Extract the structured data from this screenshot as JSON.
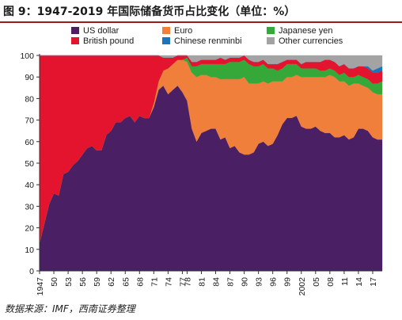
{
  "title": "图 9：1947-2019 年国际储备货币占比变化（单位：%）",
  "source": "数据来源：IMF，西南证券整理",
  "chart_data": {
    "type": "area",
    "stacked": true,
    "grid": false,
    "legend_position": "top",
    "ylim": [
      0,
      100
    ],
    "yticks": [
      0,
      10,
      20,
      30,
      40,
      50,
      60,
      70,
      80,
      90,
      100
    ],
    "xlim": [
      1947,
      2019
    ],
    "xticks": [
      {
        "year": 1947,
        "label": "1947"
      },
      {
        "year": 1950,
        "label": "50"
      },
      {
        "year": 1953,
        "label": "53"
      },
      {
        "year": 1956,
        "label": "56"
      },
      {
        "year": 1959,
        "label": "59"
      },
      {
        "year": 1962,
        "label": "62"
      },
      {
        "year": 1965,
        "label": "65"
      },
      {
        "year": 1968,
        "label": "68"
      },
      {
        "year": 1971,
        "label": "71"
      },
      {
        "year": 1974,
        "label": "74"
      },
      {
        "year": 1977,
        "label": "77"
      },
      {
        "year": 1978,
        "label": "78"
      },
      {
        "year": 1981,
        "label": "81"
      },
      {
        "year": 1984,
        "label": "84"
      },
      {
        "year": 1987,
        "label": "87"
      },
      {
        "year": 1990,
        "label": "90"
      },
      {
        "year": 1993,
        "label": "93"
      },
      {
        "year": 1996,
        "label": "96"
      },
      {
        "year": 1999,
        "label": "99"
      },
      {
        "year": 2002,
        "label": "2002"
      },
      {
        "year": 2005,
        "label": "05"
      },
      {
        "year": 2008,
        "label": "08"
      },
      {
        "year": 2011,
        "label": "11"
      },
      {
        "year": 2014,
        "label": "14"
      },
      {
        "year": 2017,
        "label": "17"
      }
    ],
    "x": [
      1947,
      1949,
      1950,
      1951,
      1952,
      1953,
      1954,
      1955,
      1956,
      1957,
      1958,
      1959,
      1960,
      1961,
      1962,
      1963,
      1964,
      1965,
      1966,
      1967,
      1968,
      1969,
      1970,
      1971,
      1972,
      1973,
      1974,
      1975,
      1976,
      1977,
      1978,
      1979,
      1980,
      1981,
      1982,
      1983,
      1984,
      1985,
      1986,
      1987,
      1988,
      1989,
      1990,
      1991,
      1992,
      1993,
      1994,
      1995,
      1996,
      1997,
      1998,
      1999,
      2000,
      2001,
      2002,
      2003,
      2004,
      2005,
      2006,
      2007,
      2008,
      2009,
      2010,
      2011,
      2012,
      2013,
      2014,
      2015,
      2016,
      2017,
      2018,
      2019
    ],
    "series": [
      {
        "name": "US dollar",
        "color": "#4b1f63",
        "values": [
          13,
          31,
          36,
          35,
          45,
          46,
          49,
          51,
          54,
          57,
          58,
          56,
          56,
          63,
          65,
          69,
          69,
          71,
          72,
          69,
          72,
          71,
          71,
          76,
          84,
          86,
          82,
          84,
          86,
          83,
          79,
          66,
          60,
          64,
          65,
          66,
          66,
          61,
          62,
          57,
          58,
          55,
          54,
          54,
          55,
          59,
          60,
          58,
          59,
          63,
          68,
          71,
          71,
          72,
          67,
          66,
          66,
          67,
          65,
          64,
          64,
          62,
          62,
          63,
          61,
          62,
          66,
          66,
          65,
          62,
          61,
          61
        ]
      },
      {
        "name": "Euro",
        "color": "#f07f3c",
        "values": [
          0,
          0,
          0,
          0,
          0,
          0,
          0,
          0,
          0,
          0,
          0,
          0,
          0,
          0,
          0,
          0,
          0,
          0,
          0,
          0,
          0,
          0,
          0,
          2,
          4,
          7,
          12,
          12,
          12,
          15,
          18,
          26,
          30,
          27,
          26,
          24,
          24,
          28,
          27,
          32,
          31,
          34,
          36,
          33,
          32,
          28,
          28,
          29,
          29,
          25,
          20,
          19,
          19,
          19,
          23,
          24,
          24,
          23,
          25,
          26,
          27,
          28,
          26,
          25,
          25,
          25,
          21,
          20,
          20,
          21,
          21,
          21
        ]
      },
      {
        "name": "Japanese yen",
        "color": "#36a83a",
        "values": [
          0,
          0,
          0,
          0,
          0,
          0,
          0,
          0,
          0,
          0,
          0,
          0,
          0,
          0,
          0,
          0,
          0,
          0,
          0,
          0,
          0,
          0,
          0,
          0,
          0,
          0,
          0,
          0,
          0,
          0,
          2,
          3,
          5,
          5,
          5,
          6,
          6,
          7,
          7,
          8,
          8,
          8,
          8,
          9,
          8,
          8,
          8,
          7,
          6,
          5,
          6,
          6,
          6,
          5,
          4,
          4,
          4,
          4,
          3,
          3,
          3,
          3,
          3,
          4,
          4,
          3,
          4,
          4,
          4,
          4,
          5,
          6
        ]
      },
      {
        "name": "British pound",
        "color": "#e4142f",
        "values": [
          87,
          69,
          64,
          65,
          55,
          54,
          51,
          49,
          46,
          43,
          42,
          44,
          44,
          37,
          35,
          31,
          31,
          29,
          28,
          31,
          28,
          29,
          29,
          22,
          12,
          6,
          5,
          3,
          2,
          2,
          1,
          2,
          2,
          2,
          2,
          2,
          2,
          3,
          2,
          2,
          2,
          2,
          2,
          2,
          2,
          2,
          2,
          2,
          2,
          3,
          3,
          2,
          2,
          2,
          2,
          3,
          3,
          3,
          4,
          5,
          4,
          4,
          4,
          4,
          4,
          4,
          4,
          5,
          5,
          5,
          5,
          5
        ]
      },
      {
        "name": "Chinese renminbi",
        "color": "#1b75bc",
        "values": [
          0,
          0,
          0,
          0,
          0,
          0,
          0,
          0,
          0,
          0,
          0,
          0,
          0,
          0,
          0,
          0,
          0,
          0,
          0,
          0,
          0,
          0,
          0,
          0,
          0,
          0,
          0,
          0,
          0,
          0,
          0,
          0,
          0,
          0,
          0,
          0,
          0,
          0,
          0,
          0,
          0,
          0,
          0,
          0,
          0,
          0,
          0,
          0,
          0,
          0,
          0,
          0,
          0,
          0,
          0,
          0,
          0,
          0,
          0,
          0,
          0,
          0,
          0,
          0,
          0,
          0,
          0,
          0,
          1,
          1,
          2,
          2
        ]
      },
      {
        "name": "Other currencies",
        "color": "#a3a3a3",
        "values": [
          0,
          0,
          0,
          0,
          0,
          0,
          0,
          0,
          0,
          0,
          0,
          0,
          0,
          0,
          0,
          0,
          0,
          0,
          0,
          0,
          0,
          0,
          0,
          0,
          0,
          1,
          1,
          1,
          0,
          0,
          0,
          3,
          3,
          2,
          2,
          2,
          2,
          1,
          2,
          1,
          1,
          1,
          0,
          2,
          3,
          3,
          2,
          4,
          4,
          4,
          3,
          2,
          2,
          2,
          4,
          3,
          3,
          3,
          3,
          2,
          2,
          3,
          5,
          4,
          6,
          6,
          5,
          5,
          5,
          7,
          6,
          5
        ]
      }
    ]
  }
}
